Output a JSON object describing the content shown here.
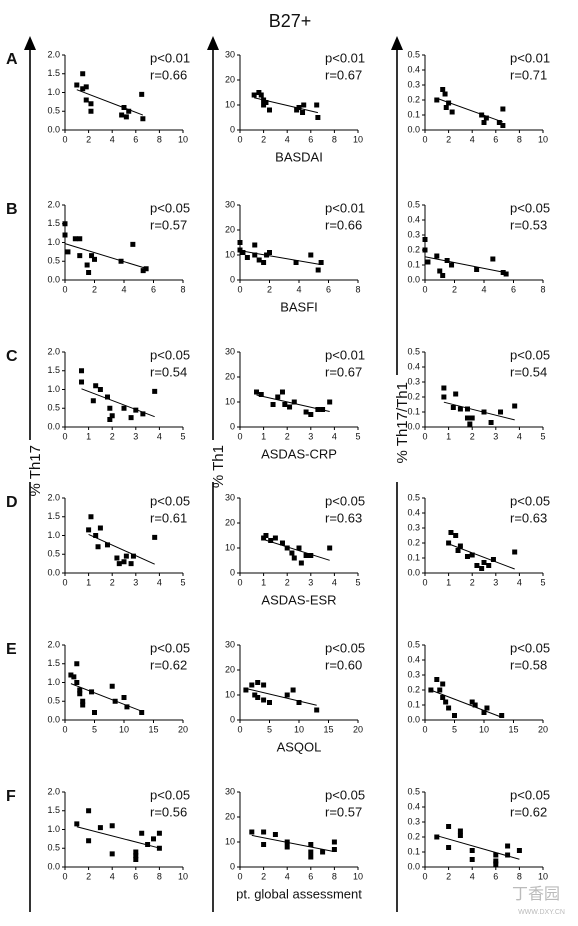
{
  "figure": {
    "title": "B27+",
    "row_labels": [
      "A",
      "B",
      "C",
      "D",
      "E",
      "F"
    ],
    "y_labels": [
      "% Th17",
      "% Th1",
      "% Th17/Th1"
    ],
    "watermark": [
      "丁香园",
      "WWW.DXY.CN"
    ]
  },
  "chart_data": [
    {
      "type": "scatter",
      "p_text": "p<0.01",
      "r_text": "r=0.66",
      "xlim": [
        0,
        10
      ],
      "xticks": [
        0,
        2,
        4,
        6,
        8,
        10
      ],
      "ylim": [
        0,
        2
      ],
      "yticks": [
        {
          "value": 0,
          "label": "0.0"
        },
        0.5,
        {
          "value": 1,
          "label": "1.0"
        },
        1.5,
        {
          "value": 2,
          "label": "2.0"
        }
      ],
      "x": [
        1,
        1.5,
        1.5,
        1.8,
        1.8,
        2.2,
        2.2,
        4.8,
        5,
        5.2,
        5.4,
        6.5,
        6.6
      ],
      "values": [
        1.2,
        1.5,
        1.1,
        1.15,
        0.8,
        0.7,
        0.5,
        0.4,
        0.6,
        0.35,
        0.5,
        0.95,
        0.3
      ]
    },
    {
      "type": "scatter",
      "p_text": "p<0.01",
      "r_text": "r=0.67",
      "x_label": "BASDAI",
      "xlim": [
        0,
        10
      ],
      "xticks": [
        0,
        2,
        4,
        6,
        8,
        10
      ],
      "ylim": [
        0,
        30
      ],
      "yticks": [
        0,
        10,
        20,
        30
      ],
      "x": [
        1.2,
        1.6,
        1.8,
        2,
        2,
        2.2,
        2.5,
        4.8,
        5,
        5.3,
        5.4,
        6.5,
        6.6
      ],
      "values": [
        14,
        15,
        14,
        12,
        10,
        11,
        8,
        8,
        9,
        7,
        10,
        10,
        5
      ]
    },
    {
      "type": "scatter",
      "p_text": "p<0.01",
      "r_text": "r=0.71",
      "xlim": [
        0,
        10
      ],
      "xticks": [
        0,
        2,
        4,
        6,
        8,
        10
      ],
      "ylim": [
        0,
        0.5
      ],
      "yticks": [
        {
          "value": 0,
          "label": "0.0"
        },
        0.1,
        0.2,
        0.3,
        0.4,
        0.5
      ],
      "x": [
        1,
        1.5,
        1.7,
        1.8,
        2,
        2.3,
        4.8,
        5,
        5.2,
        6.3,
        6.6,
        6.6
      ],
      "values": [
        0.2,
        0.27,
        0.24,
        0.15,
        0.18,
        0.12,
        0.1,
        0.05,
        0.08,
        0.05,
        0.14,
        0.03
      ]
    },
    {
      "type": "scatter",
      "p_text": "p<0.05",
      "r_text": "r=0.57",
      "xlim": [
        0,
        8
      ],
      "xticks": [
        0,
        2,
        4,
        6,
        8
      ],
      "ylim": [
        0,
        2
      ],
      "yticks": [
        {
          "value": 0,
          "label": "0.0"
        },
        0.5,
        {
          "value": 1,
          "label": "1.0"
        },
        1.5,
        {
          "value": 2,
          "label": "2.0"
        }
      ],
      "x": [
        0,
        0,
        0.2,
        0.7,
        1,
        1,
        1.5,
        1.6,
        1.8,
        2,
        3.8,
        4.6,
        5.3,
        5.5
      ],
      "values": [
        1.5,
        1.2,
        0.75,
        1.1,
        1.1,
        0.65,
        0.4,
        0.2,
        0.65,
        0.55,
        0.5,
        0.95,
        0.25,
        0.3
      ]
    },
    {
      "type": "scatter",
      "p_text": "p<0.01",
      "r_text": "r=0.66",
      "x_label": "BASFI",
      "xlim": [
        0,
        8
      ],
      "xticks": [
        0,
        2,
        4,
        6,
        8
      ],
      "ylim": [
        0,
        30
      ],
      "yticks": [
        0,
        10,
        20,
        30
      ],
      "x": [
        0,
        0,
        0.2,
        0.5,
        1,
        1,
        1.3,
        1.6,
        1.8,
        2,
        3.8,
        4.8,
        5.3,
        5.5
      ],
      "values": [
        15,
        12,
        11,
        9,
        14,
        10,
        8,
        7,
        10,
        11,
        7,
        10,
        4,
        7
      ]
    },
    {
      "type": "scatter",
      "p_text": "p<0.05",
      "r_text": "r=0.53",
      "xlim": [
        0,
        8
      ],
      "xticks": [
        0,
        2,
        4,
        6,
        8
      ],
      "ylim": [
        0,
        0.5
      ],
      "yticks": [
        {
          "value": 0,
          "label": "0.0"
        },
        0.1,
        0.2,
        0.3,
        0.4,
        0.5
      ],
      "x": [
        0,
        0,
        0.2,
        0.8,
        1,
        1.2,
        1.5,
        1.8,
        3.5,
        4.6,
        5.3,
        5.5
      ],
      "values": [
        0.27,
        0.2,
        0.12,
        0.16,
        0.06,
        0.03,
        0.13,
        0.1,
        0.07,
        0.14,
        0.05,
        0.04
      ]
    },
    {
      "type": "scatter",
      "p_text": "p<0.05",
      "r_text": "r=0.54",
      "xlim": [
        0,
        5
      ],
      "xticks": [
        0,
        1,
        2,
        3,
        4,
        5
      ],
      "ylim": [
        0,
        2
      ],
      "yticks": [
        {
          "value": 0,
          "label": "0.0"
        },
        0.5,
        {
          "value": 1,
          "label": "1.0"
        },
        1.5,
        {
          "value": 2,
          "label": "2.0"
        }
      ],
      "x": [
        0.7,
        0.7,
        1.2,
        1.3,
        1.5,
        1.8,
        1.9,
        1.9,
        2,
        2.5,
        2.8,
        3,
        3.3,
        3.8
      ],
      "values": [
        1.5,
        1.2,
        0.7,
        1.1,
        1,
        0.8,
        0.5,
        0.2,
        0.3,
        0.5,
        0.25,
        0.45,
        0.35,
        0.95
      ]
    },
    {
      "type": "scatter",
      "p_text": "p<0.01",
      "r_text": "r=0.67",
      "x_label": "ASDAS-CRP",
      "xlim": [
        0,
        5
      ],
      "xticks": [
        0,
        1,
        2,
        3,
        4,
        5
      ],
      "ylim": [
        0,
        30
      ],
      "yticks": [
        0,
        10,
        20,
        30
      ],
      "x": [
        0.7,
        0.9,
        1.4,
        1.6,
        1.8,
        1.9,
        2.1,
        2.3,
        2.8,
        3,
        3.3,
        3.5,
        3.8
      ],
      "values": [
        14,
        13,
        9,
        12,
        14,
        9,
        8,
        10,
        6,
        5,
        7,
        7,
        10
      ]
    },
    {
      "type": "scatter",
      "p_text": "p<0.05",
      "r_text": "r=0.54",
      "xlim": [
        0,
        5
      ],
      "xticks": [
        0,
        1,
        2,
        3,
        4,
        5
      ],
      "ylim": [
        0,
        0.5
      ],
      "yticks": [
        {
          "value": 0,
          "label": "0.0"
        },
        0.1,
        0.2,
        0.3,
        0.4,
        0.5
      ],
      "x": [
        0.8,
        0.8,
        1.2,
        1.3,
        1.5,
        1.8,
        1.8,
        1.9,
        2,
        2.5,
        2.8,
        3.2,
        3.8
      ],
      "values": [
        0.26,
        0.2,
        0.13,
        0.22,
        0.12,
        0.12,
        0.06,
        0.02,
        0.06,
        0.1,
        0.03,
        0.1,
        0.14
      ]
    },
    {
      "type": "scatter",
      "p_text": "p<0.05",
      "r_text": "r=0.61",
      "xlim": [
        0,
        5
      ],
      "xticks": [
        0,
        1,
        2,
        3,
        4,
        5
      ],
      "ylim": [
        0,
        2
      ],
      "yticks": [
        {
          "value": 0,
          "label": "0.0"
        },
        0.5,
        {
          "value": 1,
          "label": "1.0"
        },
        1.5,
        {
          "value": 2,
          "label": "2.0"
        }
      ],
      "x": [
        1,
        1.1,
        1.3,
        1.4,
        1.5,
        1.8,
        2.2,
        2.3,
        2.5,
        2.6,
        2.8,
        2.9,
        3.8
      ],
      "values": [
        1.15,
        1.5,
        1,
        0.7,
        1.2,
        0.75,
        0.4,
        0.25,
        0.3,
        0.45,
        0.25,
        0.45,
        0.95
      ]
    },
    {
      "type": "scatter",
      "p_text": "p<0.05",
      "r_text": "r=0.63",
      "x_label": "ASDAS-ESR",
      "xlim": [
        0,
        5
      ],
      "xticks": [
        0,
        1,
        2,
        3,
        4,
        5
      ],
      "ylim": [
        0,
        30
      ],
      "yticks": [
        0,
        10,
        20,
        30
      ],
      "x": [
        1,
        1.1,
        1.3,
        1.5,
        1.8,
        2,
        2.2,
        2.3,
        2.5,
        2.6,
        2.8,
        3,
        3.8
      ],
      "values": [
        14,
        15,
        13,
        14,
        12,
        10,
        8,
        6,
        10,
        4,
        7,
        7,
        10
      ]
    },
    {
      "type": "scatter",
      "p_text": "p<0.05",
      "r_text": "r=0.63",
      "xlim": [
        0,
        5
      ],
      "xticks": [
        0,
        1,
        2,
        3,
        4,
        5
      ],
      "ylim": [
        0,
        0.5
      ],
      "yticks": [
        {
          "value": 0,
          "label": "0.0"
        },
        0.1,
        0.2,
        0.3,
        0.4,
        0.5
      ],
      "x": [
        1,
        1.1,
        1.3,
        1.4,
        1.5,
        1.8,
        2,
        2.2,
        2.4,
        2.5,
        2.7,
        2.9,
        3.8
      ],
      "values": [
        0.2,
        0.27,
        0.25,
        0.15,
        0.18,
        0.11,
        0.12,
        0.05,
        0.03,
        0.07,
        0.05,
        0.09,
        0.14
      ]
    },
    {
      "type": "scatter",
      "p_text": "p<0.05",
      "r_text": "r=0.62",
      "xlim": [
        0,
        20
      ],
      "xticks": [
        0,
        5,
        10,
        15,
        20
      ],
      "ylim": [
        0,
        2
      ],
      "yticks": [
        {
          "value": 0,
          "label": "0.0"
        },
        0.5,
        {
          "value": 1,
          "label": "1.0"
        },
        1.5,
        {
          "value": 2,
          "label": "2.0"
        }
      ],
      "x": [
        1,
        1.5,
        2,
        2,
        2.5,
        2.5,
        3,
        3,
        4.5,
        5,
        8,
        8.5,
        10,
        10.5,
        13
      ],
      "values": [
        1.2,
        1.15,
        1.5,
        1,
        0.8,
        0.7,
        0.5,
        0.4,
        0.75,
        0.2,
        0.9,
        0.5,
        0.6,
        0.35,
        0.2
      ]
    },
    {
      "type": "scatter",
      "p_text": "p<0.05",
      "r_text": "r=0.60",
      "x_label": "ASQOL",
      "xlim": [
        0,
        20
      ],
      "xticks": [
        0,
        5,
        10,
        15,
        20
      ],
      "ylim": [
        0,
        30
      ],
      "yticks": [
        0,
        10,
        20,
        30
      ],
      "x": [
        1,
        2,
        2.5,
        3,
        3,
        4,
        4,
        5,
        8,
        9,
        10,
        13
      ],
      "values": [
        12,
        14,
        10,
        15,
        9,
        14,
        8,
        7,
        10,
        12,
        7,
        4
      ]
    },
    {
      "type": "scatter",
      "p_text": "p<0.05",
      "r_text": "r=0.58",
      "xlim": [
        0,
        20
      ],
      "xticks": [
        0,
        5,
        10,
        15,
        20
      ],
      "ylim": [
        0,
        0.5
      ],
      "yticks": [
        {
          "value": 0,
          "label": "0.0"
        },
        0.1,
        0.2,
        0.3,
        0.4,
        0.5
      ],
      "x": [
        1,
        2,
        2.5,
        3,
        3,
        3.5,
        4,
        5,
        8,
        8.5,
        10,
        10.5,
        13
      ],
      "values": [
        0.2,
        0.27,
        0.2,
        0.24,
        0.15,
        0.12,
        0.08,
        0.03,
        0.12,
        0.1,
        0.05,
        0.08,
        0.03
      ]
    },
    {
      "type": "scatter",
      "p_text": "p<0.05",
      "r_text": "r=0.56",
      "xlim": [
        0,
        10
      ],
      "xticks": [
        0,
        2,
        4,
        6,
        8,
        10
      ],
      "ylim": [
        0,
        2
      ],
      "yticks": [
        {
          "value": 0,
          "label": "0.0"
        },
        0.5,
        {
          "value": 1,
          "label": "1.0"
        },
        1.5,
        {
          "value": 2,
          "label": "2.0"
        }
      ],
      "x": [
        1,
        2,
        2,
        3,
        4,
        4,
        6,
        6,
        6,
        6.5,
        7,
        7.5,
        8,
        8
      ],
      "values": [
        1.15,
        1.5,
        0.7,
        1.05,
        1.1,
        0.35,
        0.3,
        0.4,
        0.2,
        0.9,
        0.6,
        0.75,
        0.9,
        0.5
      ]
    },
    {
      "type": "scatter",
      "p_text": "p<0.05",
      "r_text": "r=0.57",
      "x_label": "pt. global assessment",
      "xlim": [
        0,
        10
      ],
      "xticks": [
        0,
        2,
        4,
        6,
        8,
        10
      ],
      "ylim": [
        0,
        30
      ],
      "yticks": [
        0,
        10,
        20,
        30
      ],
      "x": [
        1,
        2,
        2,
        3,
        4,
        4,
        6,
        6,
        6,
        7,
        8,
        8
      ],
      "values": [
        14,
        14,
        9,
        13,
        10,
        8,
        9,
        6,
        4,
        6,
        10,
        7
      ]
    },
    {
      "type": "scatter",
      "p_text": "p<0.05",
      "r_text": "r=0.62",
      "xlim": [
        0,
        10
      ],
      "xticks": [
        0,
        2,
        4,
        6,
        8,
        10
      ],
      "ylim": [
        0,
        0.5
      ],
      "yticks": [
        {
          "value": 0,
          "label": "0.0"
        },
        0.1,
        0.2,
        0.3,
        0.4,
        0.5
      ],
      "x": [
        1,
        2,
        2,
        3,
        3,
        4,
        4,
        6,
        6,
        6,
        7,
        7,
        8
      ],
      "values": [
        0.2,
        0.27,
        0.13,
        0.24,
        0.21,
        0.11,
        0.05,
        0.04,
        0.08,
        0.02,
        0.14,
        0.08,
        0.11
      ]
    }
  ]
}
